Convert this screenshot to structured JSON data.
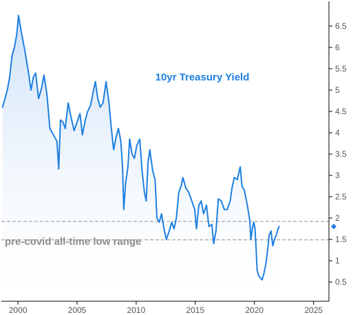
{
  "chart_data": {
    "type": "area",
    "title": "",
    "xlabel": "",
    "ylabel": "",
    "xlim": [
      1998.6,
      2026.3
    ],
    "ylim": [
      0.05,
      6.95
    ],
    "x_ticks": [
      2000,
      2005,
      2010,
      2015,
      2020,
      2025
    ],
    "y_ticks": [
      0.5,
      1,
      1.5,
      2,
      2.5,
      3,
      3.5,
      4,
      4.5,
      5,
      5.5,
      6,
      6.5
    ],
    "y_axis_side": "right",
    "grid": false,
    "series": [
      {
        "name": "10yr Treasury Yield",
        "color": "#1e7fe0",
        "points": [
          [
            1998.7,
            4.6
          ],
          [
            1998.9,
            4.8
          ],
          [
            1999.1,
            5.0
          ],
          [
            1999.3,
            5.3
          ],
          [
            1999.5,
            5.8
          ],
          [
            1999.7,
            6.0
          ],
          [
            1999.9,
            6.3
          ],
          [
            2000.05,
            6.75
          ],
          [
            2000.2,
            6.5
          ],
          [
            2000.4,
            6.2
          ],
          [
            2000.6,
            5.9
          ],
          [
            2000.9,
            5.4
          ],
          [
            2001.1,
            5.0
          ],
          [
            2001.3,
            5.3
          ],
          [
            2001.5,
            5.4
          ],
          [
            2001.75,
            4.8
          ],
          [
            2002.0,
            5.05
          ],
          [
            2002.2,
            5.35
          ],
          [
            2002.45,
            4.9
          ],
          [
            2002.7,
            4.1
          ],
          [
            2002.9,
            4.0
          ],
          [
            2003.1,
            3.9
          ],
          [
            2003.3,
            3.8
          ],
          [
            2003.45,
            3.15
          ],
          [
            2003.6,
            4.3
          ],
          [
            2003.8,
            4.25
          ],
          [
            2004.0,
            4.1
          ],
          [
            2004.25,
            4.7
          ],
          [
            2004.5,
            4.35
          ],
          [
            2004.75,
            4.05
          ],
          [
            2005.0,
            4.25
          ],
          [
            2005.25,
            4.45
          ],
          [
            2005.45,
            3.95
          ],
          [
            2005.7,
            4.3
          ],
          [
            2005.9,
            4.5
          ],
          [
            2006.15,
            4.65
          ],
          [
            2006.4,
            5.0
          ],
          [
            2006.55,
            5.2
          ],
          [
            2006.75,
            4.8
          ],
          [
            2006.95,
            4.6
          ],
          [
            2007.2,
            4.7
          ],
          [
            2007.45,
            5.2
          ],
          [
            2007.7,
            4.7
          ],
          [
            2007.9,
            4.1
          ],
          [
            2008.1,
            3.6
          ],
          [
            2008.3,
            3.9
          ],
          [
            2008.5,
            4.1
          ],
          [
            2008.7,
            3.8
          ],
          [
            2008.85,
            3.2
          ],
          [
            2008.95,
            2.2
          ],
          [
            2009.1,
            2.8
          ],
          [
            2009.3,
            3.2
          ],
          [
            2009.45,
            3.85
          ],
          [
            2009.65,
            3.5
          ],
          [
            2009.85,
            3.4
          ],
          [
            2010.05,
            3.7
          ],
          [
            2010.3,
            3.85
          ],
          [
            2010.5,
            3.1
          ],
          [
            2010.7,
            2.6
          ],
          [
            2010.85,
            2.4
          ],
          [
            2011.0,
            3.3
          ],
          [
            2011.15,
            3.6
          ],
          [
            2011.4,
            3.1
          ],
          [
            2011.6,
            2.9
          ],
          [
            2011.75,
            2.0
          ],
          [
            2011.95,
            1.9
          ],
          [
            2012.15,
            2.1
          ],
          [
            2012.35,
            1.75
          ],
          [
            2012.55,
            1.5
          ],
          [
            2012.8,
            1.7
          ],
          [
            2013.0,
            1.9
          ],
          [
            2013.2,
            1.75
          ],
          [
            2013.4,
            2.0
          ],
          [
            2013.6,
            2.6
          ],
          [
            2013.8,
            2.75
          ],
          [
            2013.95,
            2.95
          ],
          [
            2014.2,
            2.7
          ],
          [
            2014.45,
            2.6
          ],
          [
            2014.7,
            2.4
          ],
          [
            2014.95,
            2.2
          ],
          [
            2015.1,
            1.75
          ],
          [
            2015.3,
            2.3
          ],
          [
            2015.5,
            2.4
          ],
          [
            2015.7,
            2.1
          ],
          [
            2015.95,
            2.3
          ],
          [
            2016.15,
            1.8
          ],
          [
            2016.4,
            1.85
          ],
          [
            2016.55,
            1.4
          ],
          [
            2016.75,
            1.7
          ],
          [
            2016.95,
            2.45
          ],
          [
            2017.2,
            2.4
          ],
          [
            2017.45,
            2.2
          ],
          [
            2017.7,
            2.2
          ],
          [
            2017.95,
            2.4
          ],
          [
            2018.1,
            2.7
          ],
          [
            2018.3,
            2.95
          ],
          [
            2018.55,
            2.9
          ],
          [
            2018.8,
            3.2
          ],
          [
            2018.95,
            2.75
          ],
          [
            2019.15,
            2.65
          ],
          [
            2019.4,
            2.3
          ],
          [
            2019.6,
            1.95
          ],
          [
            2019.7,
            1.5
          ],
          [
            2019.85,
            1.8
          ],
          [
            2019.95,
            1.9
          ],
          [
            2020.05,
            1.75
          ],
          [
            2020.15,
            1.25
          ],
          [
            2020.22,
            0.8
          ],
          [
            2020.35,
            0.65
          ],
          [
            2020.5,
            0.6
          ],
          [
            2020.65,
            0.55
          ],
          [
            2020.8,
            0.7
          ],
          [
            2020.95,
            0.9
          ],
          [
            2021.1,
            1.2
          ],
          [
            2021.25,
            1.6
          ],
          [
            2021.4,
            1.7
          ],
          [
            2021.55,
            1.35
          ],
          [
            2021.7,
            1.5
          ],
          [
            2021.85,
            1.6
          ],
          [
            2022.0,
            1.75
          ],
          [
            2022.1,
            1.8
          ]
        ]
      }
    ],
    "last_value": 1.8,
    "label_position": "top-right of plot",
    "reference_band": {
      "label": "pre-covid all-time low range",
      "low": 1.49,
      "high": 1.92,
      "color": "#8c8c8c",
      "style": "dashed"
    },
    "colors": {
      "line": "#1e7fe0",
      "fill_top": "#c5dcf6",
      "fill_bottom": "#ffffff",
      "label": "#1e7fe0",
      "axis": "#000000",
      "tick_text": "#555555"
    }
  }
}
